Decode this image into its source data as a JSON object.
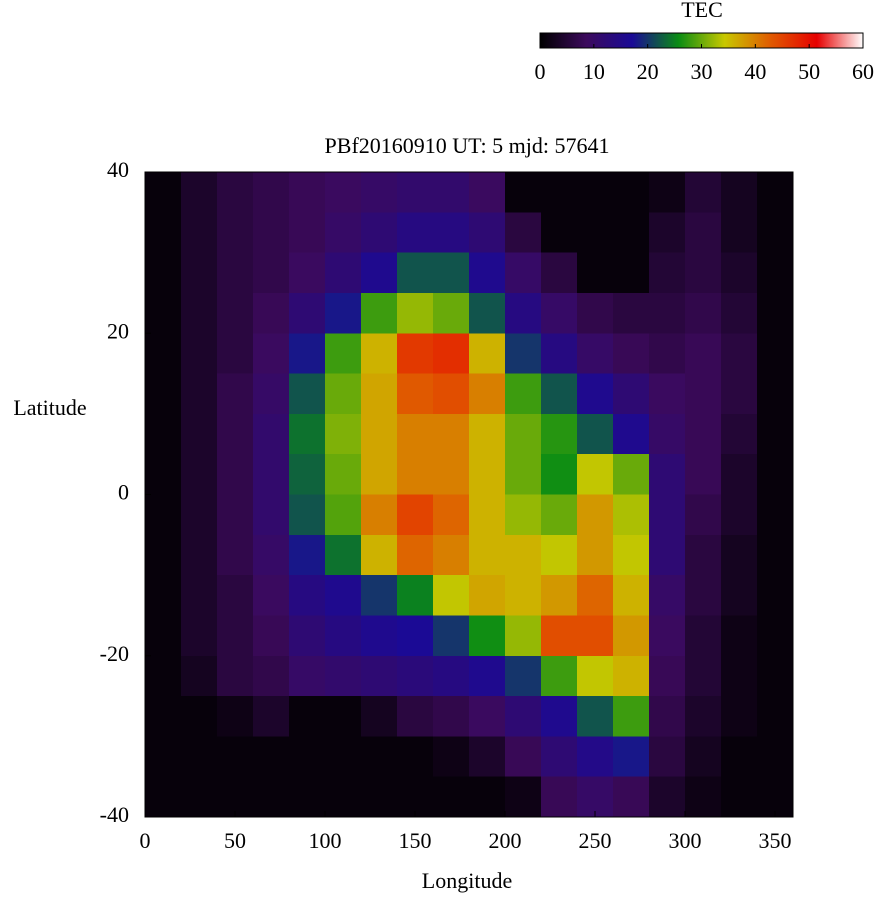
{
  "chart_data": {
    "type": "heatmap",
    "title": "PBf20160910  UT: 5  mjd: 57641",
    "x_label": "Longitude",
    "y_label": "Latitude",
    "xlim": [
      0,
      360
    ],
    "ylim": [
      -40,
      40
    ],
    "xticks": [
      0,
      50,
      100,
      150,
      200,
      250,
      300,
      350
    ],
    "yticks": [
      -40,
      -20,
      0,
      20,
      40
    ],
    "x": [
      10,
      30,
      50,
      70,
      90,
      110,
      130,
      150,
      170,
      190,
      210,
      230,
      250,
      270,
      290,
      310,
      330,
      350
    ],
    "y": [
      37.5,
      32.5,
      27.5,
      22.5,
      17.5,
      12.5,
      7.5,
      2.5,
      -2.5,
      -7.5,
      -12.5,
      -17.5,
      -22.5,
      -27.5,
      -32.5,
      -37.5
    ],
    "z": [
      [
        1,
        4,
        6,
        7,
        8,
        9,
        10,
        11,
        11,
        9,
        1,
        1,
        1,
        1,
        2,
        5,
        3,
        1
      ],
      [
        1,
        4,
        6,
        7,
        8,
        10,
        12,
        14,
        14,
        12,
        6,
        1,
        1,
        1,
        4,
        6,
        3,
        1
      ],
      [
        1,
        4,
        6,
        7,
        9,
        12,
        16,
        22,
        22,
        16,
        10,
        6,
        1,
        1,
        5,
        6,
        4,
        1
      ],
      [
        1,
        4,
        6,
        8,
        12,
        18,
        28,
        32,
        30,
        22,
        14,
        10,
        7,
        6,
        6,
        7,
        5,
        1
      ],
      [
        1,
        4,
        6,
        9,
        18,
        28,
        36,
        46,
        47,
        36,
        20,
        14,
        10,
        8,
        7,
        8,
        6,
        1
      ],
      [
        1,
        4,
        7,
        10,
        22,
        30,
        37,
        43,
        44,
        40,
        28,
        22,
        16,
        12,
        9,
        8,
        6,
        1
      ],
      [
        1,
        4,
        7,
        11,
        24,
        31,
        37,
        40,
        40,
        36,
        30,
        27,
        22,
        16,
        10,
        8,
        5,
        1
      ],
      [
        1,
        4,
        7,
        11,
        23,
        30,
        37,
        40,
        40,
        36,
        30,
        26,
        34,
        30,
        12,
        8,
        4,
        1
      ],
      [
        1,
        4,
        7,
        11,
        22,
        29,
        40,
        45,
        42,
        36,
        32,
        30,
        38,
        33,
        12,
        7,
        4,
        1
      ],
      [
        1,
        4,
        7,
        10,
        18,
        24,
        36,
        42,
        40,
        36,
        36,
        34,
        38,
        34,
        12,
        6,
        3,
        1
      ],
      [
        1,
        4,
        6,
        9,
        14,
        16,
        20,
        25,
        34,
        37,
        36,
        38,
        42,
        36,
        10,
        6,
        3,
        1
      ],
      [
        1,
        4,
        6,
        8,
        12,
        14,
        16,
        17,
        20,
        26,
        32,
        44,
        44,
        38,
        9,
        5,
        2,
        1
      ],
      [
        1,
        3,
        6,
        7,
        10,
        11,
        12,
        13,
        14,
        16,
        20,
        28,
        34,
        36,
        8,
        5,
        2,
        1
      ],
      [
        1,
        1,
        2,
        4,
        1,
        1,
        3,
        6,
        7,
        9,
        12,
        16,
        22,
        28,
        7,
        4,
        2,
        1
      ],
      [
        1,
        1,
        1,
        1,
        1,
        1,
        1,
        1,
        2,
        4,
        8,
        12,
        15,
        18,
        6,
        3,
        1,
        1
      ],
      [
        1,
        1,
        1,
        1,
        1,
        1,
        1,
        1,
        1,
        1,
        2,
        8,
        10,
        8,
        4,
        2,
        1,
        1
      ]
    ],
    "colorbar_label": "TEC",
    "zlim": [
      0,
      60
    ],
    "zticks": [
      0,
      10,
      20,
      30,
      40,
      50,
      60
    ],
    "colormap": [
      "#000000",
      "#3c0a5c",
      "#1a0a96",
      "#0a8c14",
      "#c8c800",
      "#e05a00",
      "#e60000",
      "#ffffff"
    ]
  }
}
